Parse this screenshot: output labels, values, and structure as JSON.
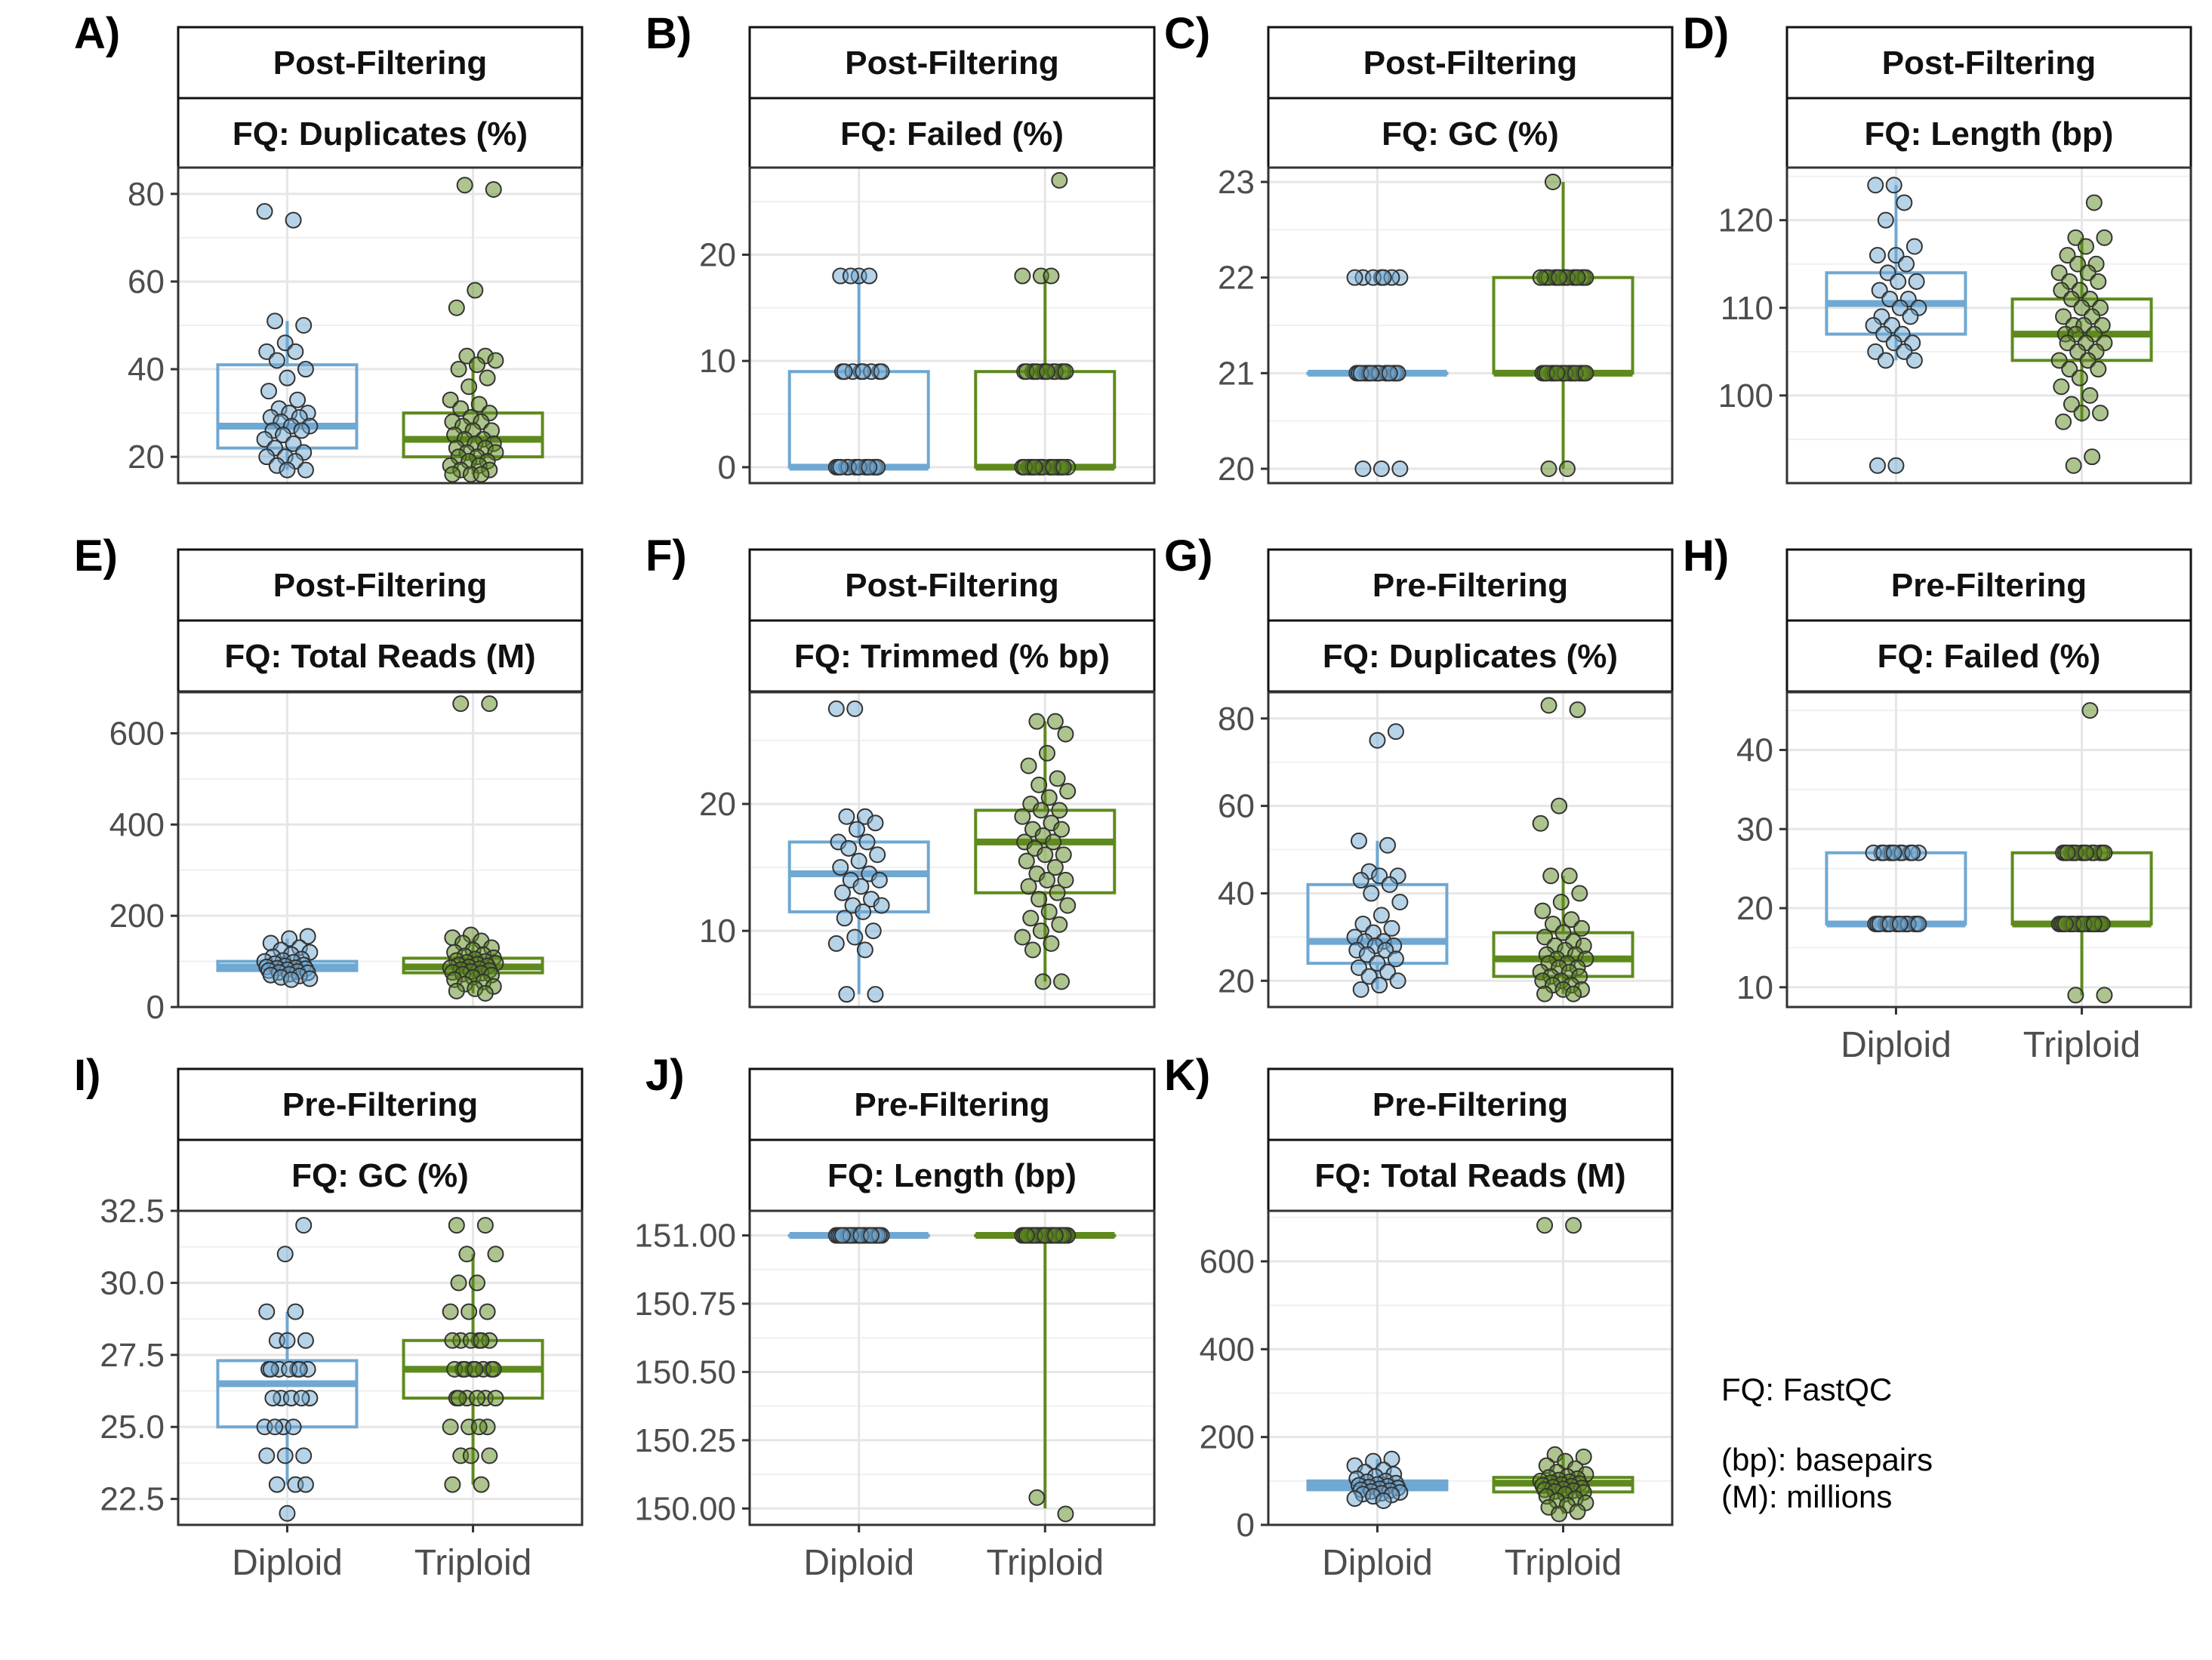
{
  "colors": {
    "diploid": "#6fa8d2",
    "triploid": "#5e8a1d"
  },
  "categories": [
    "Diploid",
    "Triploid"
  ],
  "caption": {
    "line1": "FQ: FastQC",
    "line2": "(bp): basepairs",
    "line3": "(M): millions"
  },
  "chart_data": [
    {
      "letter": "A)",
      "type": "box",
      "strip_top": "Post-Filtering",
      "strip_bottom": "FQ: Duplicates (%)",
      "categories": [
        "Diploid",
        "Triploid"
      ],
      "ylim": [
        14,
        86
      ],
      "yticks": [
        20,
        40,
        60,
        80
      ],
      "show_x_labels": false,
      "boxes": [
        {
          "name": "Diploid",
          "q1": 22,
          "median": 27,
          "q3": 41,
          "whisker_low": 17,
          "whisker_high": 51
        },
        {
          "name": "Triploid",
          "q1": 20,
          "median": 24,
          "q3": 30,
          "whisker_low": 16,
          "whisker_high": 42
        }
      ],
      "points": [
        [
          76,
          74,
          51,
          50,
          46,
          44,
          44,
          42,
          40,
          38,
          35,
          33,
          31,
          30,
          30,
          29,
          29,
          28,
          27,
          27,
          26,
          26,
          25,
          24,
          23,
          22,
          21,
          20,
          20,
          19,
          18,
          17,
          17
        ],
        [
          82,
          81,
          58,
          54,
          43,
          43,
          42,
          41,
          40,
          38,
          36,
          33,
          32,
          31,
          30,
          29,
          28,
          28,
          27,
          26,
          26,
          25,
          24,
          24,
          23,
          23,
          22,
          22,
          21,
          21,
          20,
          20,
          19,
          19,
          18,
          18,
          17,
          17,
          16,
          16,
          16
        ]
      ]
    },
    {
      "letter": "B)",
      "type": "box",
      "strip_top": "Post-Filtering",
      "strip_bottom": "FQ: Failed (%)",
      "categories": [
        "Diploid",
        "Triploid"
      ],
      "ylim": [
        -1.5,
        28.2
      ],
      "yticks": [
        0,
        10,
        20
      ],
      "show_x_labels": false,
      "boxes": [
        {
          "name": "Diploid",
          "q1": 0,
          "median": 0,
          "q3": 9,
          "whisker_low": 0,
          "whisker_high": 18
        },
        {
          "name": "Triploid",
          "q1": 0,
          "median": 0,
          "q3": 9,
          "whisker_low": 0,
          "whisker_high": 18
        }
      ],
      "points": [
        [
          18,
          18,
          18,
          18,
          9,
          9,
          9,
          9,
          9,
          9,
          9,
          9,
          0,
          0,
          0,
          0,
          0,
          0,
          0,
          0,
          0,
          0,
          0,
          0,
          0,
          0
        ],
        [
          27,
          18,
          18,
          18,
          9,
          9,
          9,
          9,
          9,
          9,
          9,
          9,
          9,
          9,
          9,
          9,
          9,
          0,
          0,
          0,
          0,
          0,
          0,
          0,
          0,
          0,
          0,
          0,
          0,
          0,
          0,
          0,
          0,
          0
        ]
      ]
    },
    {
      "letter": "C)",
      "type": "box",
      "strip_top": "Post-Filtering",
      "strip_bottom": "FQ: GC (%)",
      "categories": [
        "Diploid",
        "Triploid"
      ],
      "ylim": [
        19.85,
        23.15
      ],
      "yticks": [
        20,
        21,
        22,
        23
      ],
      "show_x_labels": false,
      "boxes": [
        {
          "name": "Diploid",
          "q1": 21,
          "median": 21,
          "q3": 21,
          "whisker_low": 21,
          "whisker_high": 21
        },
        {
          "name": "Triploid",
          "q1": 21,
          "median": 21,
          "q3": 22,
          "whisker_low": 20,
          "whisker_high": 23
        }
      ],
      "points": [
        [
          22,
          22,
          22,
          22,
          22,
          22,
          22,
          21,
          21,
          21,
          21,
          21,
          21,
          21,
          21,
          21,
          21,
          21,
          21,
          21,
          21,
          21,
          21,
          20,
          20,
          20
        ],
        [
          23,
          22,
          22,
          22,
          22,
          22,
          22,
          22,
          22,
          22,
          22,
          22,
          22,
          22,
          22,
          22,
          22,
          21,
          21,
          21,
          21,
          21,
          21,
          21,
          21,
          21,
          21,
          21,
          21,
          21,
          21,
          21,
          21,
          21,
          21,
          20,
          20
        ]
      ]
    },
    {
      "letter": "D)",
      "type": "box",
      "strip_top": "Post-Filtering",
      "strip_bottom": "FQ: Length (bp)",
      "categories": [
        "Diploid",
        "Triploid"
      ],
      "ylim": [
        90,
        126
      ],
      "yticks": [
        100,
        110,
        120
      ],
      "show_x_labels": false,
      "boxes": [
        {
          "name": "Diploid",
          "q1": 107,
          "median": 110.5,
          "q3": 114,
          "whisker_low": 104,
          "whisker_high": 124
        },
        {
          "name": "Triploid",
          "q1": 104,
          "median": 107,
          "q3": 111,
          "whisker_low": 97,
          "whisker_high": 118
        }
      ],
      "points": [
        [
          124,
          124,
          122,
          120,
          117,
          116,
          116,
          115,
          114,
          113,
          113,
          112,
          111,
          111,
          110,
          110,
          109,
          109,
          108,
          108,
          107,
          107,
          106,
          106,
          105,
          105,
          104,
          104,
          92,
          92
        ],
        [
          122,
          118,
          118,
          117,
          116,
          115,
          115,
          114,
          114,
          113,
          113,
          112,
          112,
          111,
          111,
          110,
          110,
          109,
          109,
          108,
          108,
          108,
          107,
          107,
          107,
          106,
          106,
          106,
          105,
          105,
          104,
          104,
          103,
          103,
          102,
          101,
          100,
          99,
          98,
          98,
          97,
          93,
          92
        ]
      ]
    },
    {
      "letter": "E)",
      "type": "box",
      "strip_top": "Post-Filtering",
      "strip_bottom": "FQ: Total Reads (M)",
      "categories": [
        "Diploid",
        "Triploid"
      ],
      "ylim": [
        0,
        690
      ],
      "yticks": [
        0,
        200,
        400,
        600
      ],
      "show_x_labels": false,
      "boxes": [
        {
          "name": "Diploid",
          "q1": 80,
          "median": 88,
          "q3": 100,
          "whisker_low": 60,
          "whisker_high": 150
        },
        {
          "name": "Triploid",
          "q1": 75,
          "median": 88,
          "q3": 107,
          "whisker_low": 30,
          "whisker_high": 150
        }
      ],
      "points": [
        [
          155,
          150,
          140,
          130,
          125,
          120,
          115,
          110,
          105,
          102,
          100,
          98,
          95,
          92,
          90,
          88,
          86,
          85,
          84,
          82,
          80,
          78,
          76,
          75,
          72,
          70,
          68,
          65,
          62,
          60
        ],
        [
          665,
          665,
          158,
          152,
          145,
          140,
          130,
          125,
          120,
          115,
          112,
          108,
          105,
          102,
          100,
          98,
          96,
          94,
          92,
          90,
          88,
          86,
          84,
          82,
          80,
          78,
          76,
          74,
          72,
          70,
          65,
          60,
          55,
          50,
          45,
          40,
          35,
          30
        ]
      ]
    },
    {
      "letter": "F)",
      "type": "box",
      "strip_top": "Post-Filtering",
      "strip_bottom": "FQ: Trimmed (% bp)",
      "categories": [
        "Diploid",
        "Triploid"
      ],
      "ylim": [
        4,
        28.8
      ],
      "yticks": [
        10,
        20
      ],
      "show_x_labels": false,
      "boxes": [
        {
          "name": "Diploid",
          "q1": 11.5,
          "median": 14.5,
          "q3": 17,
          "whisker_low": 5,
          "whisker_high": 19
        },
        {
          "name": "Triploid",
          "q1": 13,
          "median": 17,
          "q3": 19.5,
          "whisker_low": 6,
          "whisker_high": 26.5
        }
      ],
      "points": [
        [
          27.5,
          27.5,
          19,
          19,
          18.5,
          18,
          17,
          17,
          16.5,
          16,
          15.5,
          15,
          14.5,
          14,
          14,
          13.5,
          13,
          12.5,
          12,
          12,
          11.5,
          11,
          10,
          9.5,
          9,
          8.5,
          5,
          5
        ],
        [
          26.5,
          26.5,
          25.5,
          24,
          23,
          22,
          21.5,
          21,
          20.5,
          20,
          19.5,
          19.5,
          19,
          18.5,
          18,
          18,
          17.5,
          17,
          17,
          16.5,
          16,
          16,
          15.5,
          15,
          14.5,
          14,
          14,
          13.5,
          13,
          12.5,
          12,
          11.5,
          11,
          10.5,
          10,
          9.5,
          9,
          8.5,
          6,
          6
        ]
      ]
    },
    {
      "letter": "G)",
      "type": "box",
      "strip_top": "Pre-Filtering",
      "strip_bottom": "FQ: Duplicates (%)",
      "categories": [
        "Diploid",
        "Triploid"
      ],
      "ylim": [
        14,
        86
      ],
      "yticks": [
        20,
        40,
        60,
        80
      ],
      "show_x_labels": false,
      "boxes": [
        {
          "name": "Diploid",
          "q1": 24,
          "median": 29,
          "q3": 42,
          "whisker_low": 18,
          "whisker_high": 52
        },
        {
          "name": "Triploid",
          "q1": 21,
          "median": 25,
          "q3": 31,
          "whisker_low": 17,
          "whisker_high": 44
        }
      ],
      "points": [
        [
          77,
          75,
          52,
          51,
          45,
          44,
          44,
          43,
          42,
          40,
          38,
          35,
          33,
          32,
          31,
          30,
          29,
          29,
          28,
          28,
          27,
          27,
          26,
          25,
          24,
          23,
          22,
          21,
          20,
          19,
          18
        ],
        [
          83,
          82,
          60,
          56,
          44,
          44,
          40,
          38,
          36,
          34,
          33,
          32,
          31,
          30,
          29,
          28,
          28,
          27,
          26,
          26,
          25,
          25,
          24,
          24,
          23,
          23,
          22,
          22,
          21,
          21,
          20,
          20,
          19,
          19,
          18,
          18,
          17,
          17
        ]
      ]
    },
    {
      "letter": "H)",
      "type": "box",
      "strip_top": "Pre-Filtering",
      "strip_bottom": "FQ: Failed (%)",
      "categories": [
        "Diploid",
        "Triploid"
      ],
      "ylim": [
        7.5,
        47.3
      ],
      "yticks": [
        10,
        20,
        30,
        40
      ],
      "show_x_labels": true,
      "boxes": [
        {
          "name": "Diploid",
          "q1": 18,
          "median": 18,
          "q3": 27,
          "whisker_low": 18,
          "whisker_high": 27
        },
        {
          "name": "Triploid",
          "q1": 18,
          "median": 18,
          "q3": 27,
          "whisker_low": 9,
          "whisker_high": 27
        }
      ],
      "points": [
        [
          27,
          27,
          27,
          27,
          27,
          27,
          27,
          27,
          27,
          27,
          27,
          18,
          18,
          18,
          18,
          18,
          18,
          18,
          18,
          18,
          18,
          18,
          18,
          18,
          18,
          18
        ],
        [
          45,
          27,
          27,
          27,
          27,
          27,
          27,
          27,
          27,
          27,
          27,
          27,
          27,
          27,
          27,
          18,
          18,
          18,
          18,
          18,
          18,
          18,
          18,
          18,
          18,
          18,
          18,
          18,
          18,
          18,
          18,
          18,
          18,
          18,
          9,
          9
        ]
      ]
    },
    {
      "letter": "I)",
      "type": "box",
      "strip_top": "Pre-Filtering",
      "strip_bottom": "FQ: GC (%)",
      "categories": [
        "Diploid",
        "Triploid"
      ],
      "ylim": [
        21.6,
        32.5
      ],
      "yticks": [
        22.5,
        25.0,
        27.5,
        30.0,
        32.5
      ],
      "ytick_labels": [
        "22.5",
        "25.0",
        "27.5",
        "30.0",
        "32.5"
      ],
      "show_x_labels": true,
      "boxes": [
        {
          "name": "Diploid",
          "q1": 25,
          "median": 26.5,
          "q3": 27.3,
          "whisker_low": 23,
          "whisker_high": 29
        },
        {
          "name": "Triploid",
          "q1": 26,
          "median": 27,
          "q3": 28,
          "whisker_low": 23,
          "whisker_high": 31
        }
      ],
      "points": [
        [
          32,
          31,
          29,
          29,
          28,
          28,
          28,
          27,
          27,
          27,
          27,
          27,
          27,
          27,
          26,
          26,
          26,
          26,
          26,
          25,
          25,
          25,
          25,
          24,
          24,
          24,
          23,
          23,
          23,
          22
        ],
        [
          32,
          32,
          31,
          31,
          30,
          30,
          29,
          29,
          29,
          28,
          28,
          28,
          28,
          28,
          28,
          27,
          27,
          27,
          27,
          27,
          27,
          27,
          27,
          26,
          26,
          26,
          26,
          26,
          26,
          25,
          25,
          25,
          25,
          24,
          24,
          24,
          23,
          23
        ]
      ]
    },
    {
      "letter": "J)",
      "type": "box",
      "strip_top": "Pre-Filtering",
      "strip_bottom": "FQ: Length (bp)",
      "categories": [
        "Diploid",
        "Triploid"
      ],
      "ylim": [
        149.94,
        151.09
      ],
      "yticks": [
        150.0,
        150.25,
        150.5,
        150.75,
        151.0
      ],
      "ytick_labels": [
        "150.00",
        "150.25",
        "150.50",
        "150.75",
        "151.00"
      ],
      "show_x_labels": true,
      "boxes": [
        {
          "name": "Diploid",
          "q1": 151,
          "median": 151,
          "q3": 151,
          "whisker_low": 151,
          "whisker_high": 151
        },
        {
          "name": "Triploid",
          "q1": 151,
          "median": 151,
          "q3": 151,
          "whisker_low": 150,
          "whisker_high": 151
        }
      ],
      "points": [
        [
          151,
          151,
          151,
          151,
          151,
          151,
          151,
          151,
          151,
          151,
          151,
          151,
          151,
          151,
          151,
          151,
          151,
          151,
          151,
          151,
          151,
          151,
          151,
          151,
          151,
          151,
          151,
          151
        ],
        [
          151,
          151,
          151,
          151,
          151,
          151,
          151,
          151,
          151,
          151,
          151,
          151,
          151,
          151,
          151,
          151,
          151,
          151,
          151,
          151,
          151,
          151,
          151,
          151,
          151,
          151,
          151,
          151,
          151,
          151,
          151,
          151,
          151,
          151,
          150.04,
          149.98
        ]
      ]
    },
    {
      "letter": "K)",
      "type": "box",
      "strip_top": "Pre-Filtering",
      "strip_bottom": "FQ: Total Reads (M)",
      "categories": [
        "Diploid",
        "Triploid"
      ],
      "ylim": [
        0,
        715
      ],
      "yticks": [
        0,
        200,
        400,
        600
      ],
      "show_x_labels": true,
      "boxes": [
        {
          "name": "Diploid",
          "q1": 80,
          "median": 90,
          "q3": 100,
          "whisker_low": 55,
          "whisker_high": 150
        },
        {
          "name": "Triploid",
          "q1": 75,
          "median": 95,
          "q3": 108,
          "whisker_low": 25,
          "whisker_high": 160
        }
      ],
      "points": [
        [
          150,
          145,
          135,
          125,
          120,
          115,
          110,
          105,
          100,
          98,
          95,
          92,
          90,
          88,
          86,
          84,
          82,
          80,
          78,
          76,
          74,
          72,
          70,
          68,
          65,
          60,
          55
        ],
        [
          682,
          682,
          160,
          155,
          145,
          135,
          128,
          120,
          115,
          110,
          108,
          105,
          102,
          100,
          98,
          96,
          94,
          92,
          90,
          88,
          86,
          84,
          82,
          80,
          78,
          76,
          74,
          70,
          65,
          60,
          55,
          50,
          45,
          40,
          30,
          25
        ]
      ]
    }
  ]
}
